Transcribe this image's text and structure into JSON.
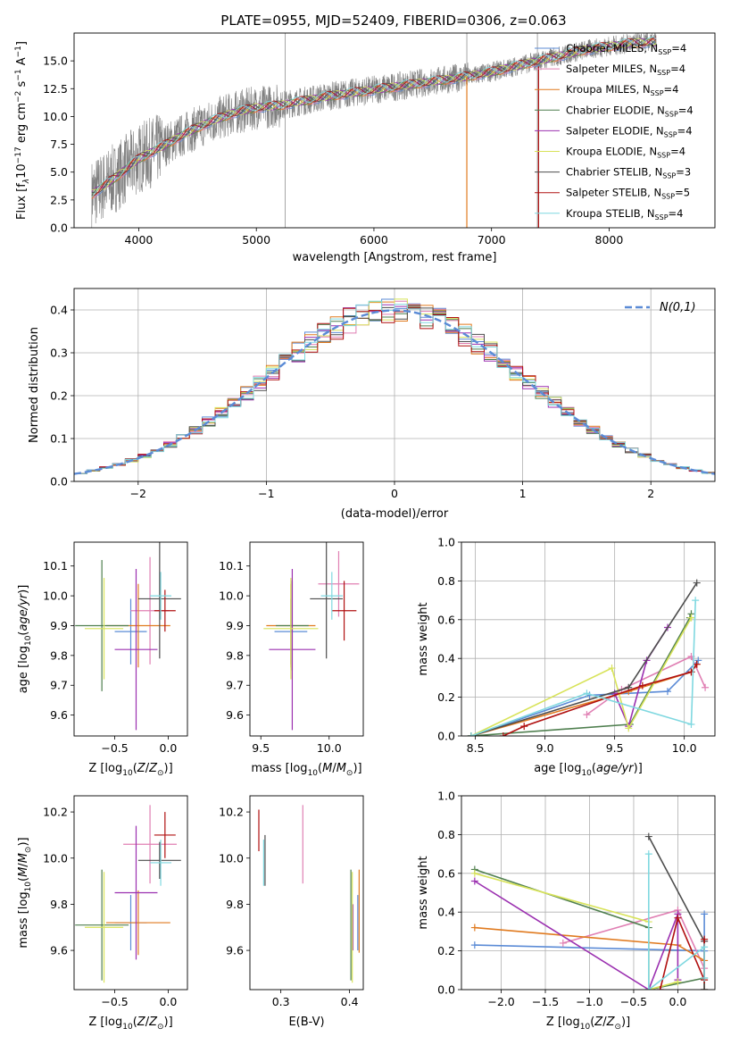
{
  "figure": {
    "title": "PLATE=0955, MJD=52409, FIBERID=0306, z=0.063"
  },
  "colors": {
    "c_miles": "#5b8bd6",
    "s_miles": "#e07fb3",
    "k_miles": "#e07a1f",
    "c_elodie": "#4f7f4f",
    "s_elodie": "#9b30b0",
    "k_elodie": "#d8e35a",
    "c_stelib": "#4d4d4d",
    "s_stelib": "#b01010",
    "k_stelib": "#7fd8e0",
    "data": "#808080",
    "gauss": "#5b8bd6"
  },
  "chart_data": [
    {
      "id": "spectrum",
      "type": "line",
      "title": "PLATE=0955, MJD=52409, FIBERID=0306, z=0.063",
      "xlabel": "wavelength [Angstrom, rest frame]",
      "ylabel": "Flux [f_λ 10^-17 erg cm^-2 s^-1 A^-1]",
      "xlim": [
        3450,
        8900
      ],
      "ylim": [
        0,
        17.5
      ],
      "xticks": [
        "4000",
        "5000",
        "6000",
        "7000",
        "8000"
      ],
      "yticks": [
        "0.0",
        "2.5",
        "5.0",
        "7.5",
        "10.0",
        "12.5",
        "15.0"
      ],
      "x": [
        3600,
        3800,
        4000,
        4200,
        4400,
        4600,
        4800,
        5000,
        5200,
        5400,
        5600,
        5800,
        6000,
        6200,
        6400,
        6600,
        6800,
        7000,
        7200,
        7400,
        7600,
        7800,
        8000,
        8200,
        8400
      ],
      "model_y": [
        3.0,
        4.5,
        6.2,
        7.3,
        8.5,
        9.5,
        10.3,
        10.8,
        11.0,
        11.4,
        11.8,
        12.1,
        12.4,
        12.7,
        13.0,
        13.3,
        13.6,
        14.0,
        14.5,
        15.0,
        15.5,
        16.0,
        16.3,
        16.6,
        16.7
      ],
      "legend": [
        {
          "label": "Chabrier MILES, N_SSP=4",
          "color": "c_miles"
        },
        {
          "label": "Salpeter MILES, N_SSP=4",
          "color": "s_miles"
        },
        {
          "label": "Kroupa MILES, N_SSP=4",
          "color": "k_miles"
        },
        {
          "label": "Chabrier ELODIE, N_SSP=4",
          "color": "c_elodie"
        },
        {
          "label": "Salpeter ELODIE, N_SSP=4",
          "color": "s_elodie"
        },
        {
          "label": "Kroupa ELODIE, N_SSP=4",
          "color": "k_elodie"
        },
        {
          "label": "Chabrier STELIB, N_SSP=3",
          "color": "c_stelib"
        },
        {
          "label": "Salpeter STELIB, N_SSP=5",
          "color": "s_stelib"
        },
        {
          "label": "Kroupa STELIB, N_SSP=4",
          "color": "k_stelib"
        }
      ],
      "legend_position": "upper right"
    },
    {
      "id": "residuals",
      "type": "histogram",
      "xlabel": "(data-model)/error",
      "ylabel": "Normed distribution",
      "xlim": [
        -2.5,
        2.5
      ],
      "ylim": [
        0,
        0.45
      ],
      "xticks": [
        "−2",
        "−1",
        "0",
        "1",
        "2"
      ],
      "yticks": [
        "0.0",
        "0.1",
        "0.2",
        "0.3",
        "0.4"
      ],
      "bin_width": 0.1,
      "reference_label": "N(0,1)",
      "grid": true
    },
    {
      "id": "z_age",
      "type": "errorbar",
      "xlabel": "Z [log10(Z/Z⊙)]",
      "ylabel": "age [log10(age/yr)]",
      "xlim": [
        -0.88,
        0.18
      ],
      "ylim": [
        9.53,
        10.18
      ],
      "xticks": [
        "−0.5",
        "0.0"
      ],
      "yticks": [
        "9.6",
        "9.7",
        "9.8",
        "9.9",
        "10.0",
        "10.1"
      ],
      "points": [
        {
          "color": "c_miles",
          "x": -0.35,
          "y": 9.88,
          "xerr": 0.15,
          "yerr": 0.11
        },
        {
          "color": "s_miles",
          "x": -0.17,
          "y": 9.95,
          "xerr": 0.18,
          "yerr": 0.18
        },
        {
          "color": "k_miles",
          "x": -0.28,
          "y": 9.9,
          "xerr": 0.3,
          "yerr": 0.14
        },
        {
          "color": "c_elodie",
          "x": -0.62,
          "y": 9.9,
          "xerr": 0.25,
          "yerr": 0.22
        },
        {
          "color": "s_elodie",
          "x": -0.3,
          "y": 9.82,
          "xerr": 0.2,
          "yerr": 0.27
        },
        {
          "color": "k_elodie",
          "x": -0.6,
          "y": 9.89,
          "xerr": 0.18,
          "yerr": 0.17
        },
        {
          "color": "c_stelib",
          "x": -0.08,
          "y": 9.99,
          "xerr": 0.2,
          "yerr": 0.2
        },
        {
          "color": "s_stelib",
          "x": -0.03,
          "y": 9.95,
          "xerr": 0.1,
          "yerr": 0.07
        },
        {
          "color": "k_stelib",
          "x": -0.07,
          "y": 10.0,
          "xerr": 0.1,
          "yerr": 0.08
        }
      ]
    },
    {
      "id": "mass_age",
      "type": "errorbar",
      "xlabel": "mass [log10(M/M⊙)]",
      "xlim": [
        9.42,
        10.25
      ],
      "ylim": [
        9.53,
        10.18
      ],
      "xticks": [
        "9.5",
        "10.0"
      ],
      "yticks": [
        "9.6",
        "9.7",
        "9.8",
        "9.9",
        "10.0",
        "10.1"
      ],
      "points": [
        {
          "color": "c_miles",
          "x": 9.72,
          "y": 9.88,
          "xerr": 0.12,
          "yerr": 0.11
        },
        {
          "color": "s_miles",
          "x": 10.07,
          "y": 10.04,
          "xerr": 0.15,
          "yerr": 0.11
        },
        {
          "color": "k_miles",
          "x": 9.72,
          "y": 9.9,
          "xerr": 0.18,
          "yerr": 0.14
        },
        {
          "color": "c_elodie",
          "x": 9.73,
          "y": 9.9,
          "xerr": 0.12,
          "yerr": 0.15
        },
        {
          "color": "s_elodie",
          "x": 9.73,
          "y": 9.82,
          "xerr": 0.17,
          "yerr": 0.27
        },
        {
          "color": "k_elodie",
          "x": 9.72,
          "y": 9.89,
          "xerr": 0.2,
          "yerr": 0.17
        },
        {
          "color": "c_stelib",
          "x": 9.98,
          "y": 9.99,
          "xerr": 0.12,
          "yerr": 0.2
        },
        {
          "color": "s_stelib",
          "x": 10.11,
          "y": 9.95,
          "xerr": 0.09,
          "yerr": 0.1
        },
        {
          "color": "k_stelib",
          "x": 10.02,
          "y": 10.0,
          "xerr": 0.08,
          "yerr": 0.08
        }
      ]
    },
    {
      "id": "age_weight",
      "type": "line",
      "xlabel": "age [log10(age/yr)]",
      "ylabel": "mass weight",
      "xlim": [
        8.4,
        10.22
      ],
      "ylim": [
        0,
        1
      ],
      "xticks": [
        "8.5",
        "9.0",
        "9.5",
        "10.0"
      ],
      "yticks": [
        "0.0",
        "0.2",
        "0.4",
        "0.6",
        "0.8",
        "1.0"
      ],
      "grid": true,
      "series": [
        {
          "color": "c_miles",
          "x": [
            8.47,
            9.32,
            9.88,
            10.1
          ],
          "y": [
            0.0,
            0.21,
            0.23,
            0.39
          ]
        },
        {
          "color": "s_miles",
          "x": [
            9.3,
            9.55,
            10.05,
            10.15
          ],
          "y": [
            0.11,
            0.24,
            0.41,
            0.25
          ]
        },
        {
          "color": "k_miles",
          "x": [
            8.47,
            9.6,
            10.05,
            10.09
          ],
          "y": [
            0.0,
            0.23,
            0.33,
            0.37
          ]
        },
        {
          "color": "c_elodie",
          "x": [
            8.47,
            9.61,
            10.04,
            10.05
          ],
          "y": [
            0.0,
            0.06,
            0.61,
            0.63
          ]
        },
        {
          "color": "s_elodie",
          "x": [
            9.5,
            9.6,
            9.73,
            9.88
          ],
          "y": [
            0.22,
            0.05,
            0.39,
            0.56
          ]
        },
        {
          "color": "k_elodie",
          "x": [
            8.47,
            9.48,
            9.6,
            10.05
          ],
          "y": [
            0.0,
            0.35,
            0.04,
            0.61
          ]
        },
        {
          "color": "c_stelib",
          "x": [
            8.47,
            9.6,
            10.09
          ],
          "y": [
            0.0,
            0.25,
            0.79
          ]
        },
        {
          "color": "s_stelib",
          "x": [
            8.7,
            8.85,
            9.7,
            10.05,
            10.09
          ],
          "y": [
            0.0,
            0.05,
            0.26,
            0.33,
            0.37
          ]
        },
        {
          "color": "k_stelib",
          "x": [
            8.47,
            9.3,
            10.05,
            10.08
          ],
          "y": [
            0.0,
            0.22,
            0.06,
            0.7
          ]
        }
      ]
    },
    {
      "id": "z_mass",
      "type": "errorbar",
      "xlabel": "Z [log10(Z/Z⊙)]",
      "ylabel": "mass [log10(M/M⊙)]",
      "xlim": [
        -0.88,
        0.18
      ],
      "ylim": [
        9.43,
        10.27
      ],
      "xticks": [
        "−0.5",
        "0.0"
      ],
      "yticks": [
        "9.6",
        "9.8",
        "10.0",
        "10.2"
      ],
      "points": [
        {
          "color": "c_miles",
          "x": -0.35,
          "y": 9.72,
          "xerr": 0.15,
          "yerr": 0.12
        },
        {
          "color": "s_miles",
          "x": -0.17,
          "y": 10.06,
          "xerr": 0.25,
          "yerr": 0.17
        },
        {
          "color": "k_miles",
          "x": -0.28,
          "y": 9.72,
          "xerr": 0.3,
          "yerr": 0.14
        },
        {
          "color": "c_elodie",
          "x": -0.62,
          "y": 9.71,
          "xerr": 0.25,
          "yerr": 0.24
        },
        {
          "color": "s_elodie",
          "x": -0.3,
          "y": 9.85,
          "xerr": 0.2,
          "yerr": 0.29
        },
        {
          "color": "k_elodie",
          "x": -0.6,
          "y": 9.7,
          "xerr": 0.18,
          "yerr": 0.24
        },
        {
          "color": "c_stelib",
          "x": -0.08,
          "y": 9.99,
          "xerr": 0.2,
          "yerr": 0.08
        },
        {
          "color": "s_stelib",
          "x": -0.03,
          "y": 10.1,
          "xerr": 0.1,
          "yerr": 0.1
        },
        {
          "color": "k_stelib",
          "x": -0.07,
          "y": 9.98,
          "xerr": 0.1,
          "yerr": 0.1
        }
      ]
    },
    {
      "id": "ebv_mass",
      "type": "errorbar",
      "xlabel": "E(B-V)",
      "xlim": [
        0.255,
        0.42
      ],
      "ylim": [
        9.43,
        10.27
      ],
      "xticks": [
        "0.3",
        "0.4"
      ],
      "yticks": [
        "9.6",
        "9.8",
        "10.0",
        "10.2"
      ],
      "points": [
        {
          "color": "c_miles",
          "x": 0.412,
          "y": 9.72,
          "xerr": 0.0,
          "yerr": 0.12
        },
        {
          "color": "s_miles",
          "x": 0.332,
          "y": 10.06,
          "xerr": 0.0,
          "yerr": 0.17
        },
        {
          "color": "k_miles",
          "x": 0.414,
          "y": 9.77,
          "xerr": 0.0,
          "yerr": 0.18
        },
        {
          "color": "c_elodie",
          "x": 0.402,
          "y": 9.71,
          "xerr": 0.0,
          "yerr": 0.24
        },
        {
          "color": "s_elodie",
          "x": 0.405,
          "y": 9.7,
          "xerr": 0.0,
          "yerr": 0.1
        },
        {
          "color": "k_elodie",
          "x": 0.404,
          "y": 9.7,
          "xerr": 0.0,
          "yerr": 0.24
        },
        {
          "color": "c_stelib",
          "x": 0.277,
          "y": 9.99,
          "xerr": 0.0,
          "yerr": 0.11
        },
        {
          "color": "s_stelib",
          "x": 0.268,
          "y": 10.12,
          "xerr": 0.0,
          "yerr": 0.09
        },
        {
          "color": "k_stelib",
          "x": 0.275,
          "y": 9.98,
          "xerr": 0.0,
          "yerr": 0.1
        }
      ]
    },
    {
      "id": "z_weight",
      "type": "line",
      "xlabel": "Z [log10(Z/Z⊙)]",
      "ylabel": "mass weight",
      "xlim": [
        -2.45,
        0.42
      ],
      "ylim": [
        0,
        1
      ],
      "xticks": [
        "−2.0",
        "−1.5",
        "−1.0",
        "−0.5",
        "0.0"
      ],
      "yticks": [
        "0.0",
        "0.2",
        "0.4",
        "0.6",
        "0.8",
        "1.0"
      ],
      "grid": true,
      "series": [
        {
          "color": "c_miles",
          "x": [
            -2.3,
            0.3,
            0.3,
            0.3
          ],
          "y": [
            0.23,
            0.2,
            0.39,
            0.0
          ]
        },
        {
          "color": "s_miles",
          "x": [
            -1.3,
            0.0,
            0.3,
            0.3
          ],
          "y": [
            0.24,
            0.41,
            0.11,
            0.25
          ]
        },
        {
          "color": "k_miles",
          "x": [
            -2.3,
            0.0,
            0.3,
            0.3
          ],
          "y": [
            0.32,
            0.23,
            0.15,
            0.0
          ]
        },
        {
          "color": "c_elodie",
          "x": [
            -2.3,
            -0.33,
            -0.33,
            0.3
          ],
          "y": [
            0.62,
            0.32,
            0.0,
            0.06
          ]
        },
        {
          "color": "s_elodie",
          "x": [
            -2.3,
            -0.33,
            0.0,
            0.0
          ],
          "y": [
            0.56,
            0.0,
            0.39,
            0.05
          ]
        },
        {
          "color": "k_elodie",
          "x": [
            -2.3,
            -0.33,
            -0.33,
            0.0
          ],
          "y": [
            0.6,
            0.35,
            0.0,
            0.04
          ]
        },
        {
          "color": "c_stelib",
          "x": [
            -0.33,
            0.3,
            0.3
          ],
          "y": [
            0.79,
            0.25,
            0.0
          ]
        },
        {
          "color": "s_stelib",
          "x": [
            -0.2,
            0.0,
            0.3,
            0.3
          ],
          "y": [
            0.0,
            0.37,
            0.05,
            0.26
          ]
        },
        {
          "color": "k_stelib",
          "x": [
            -0.33,
            -0.33,
            0.3,
            0.3
          ],
          "y": [
            0.7,
            0.0,
            0.22,
            0.06
          ]
        }
      ]
    }
  ]
}
